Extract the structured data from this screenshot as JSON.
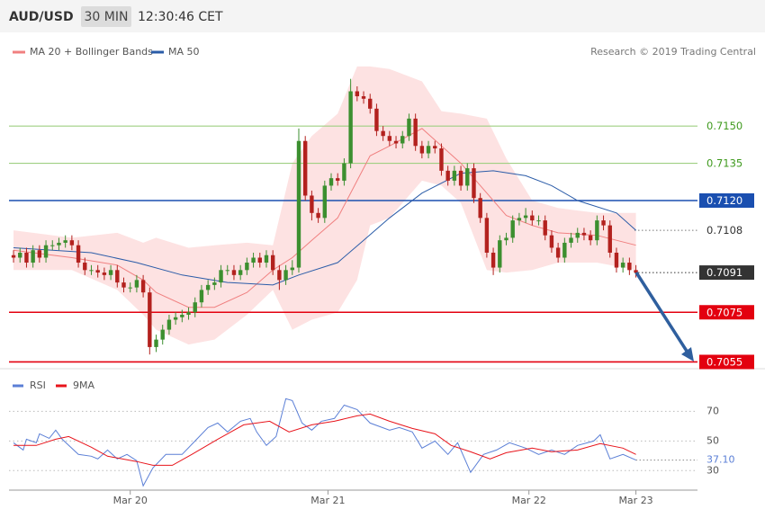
{
  "header": {
    "symbol": "AUD/USD",
    "interval": "30 MIN",
    "time": "12:30:46 CET"
  },
  "credit": "Research © 2019 Trading Central",
  "chart_data": [
    {
      "type": "candlestick",
      "open": [
        0.7098,
        0.7097,
        0.7099,
        0.7095,
        0.71,
        0.7097,
        0.7102,
        0.7102,
        0.7103,
        0.7104,
        0.7102,
        0.7095,
        0.7092,
        0.7092,
        0.7091,
        0.709,
        0.7092,
        0.7087,
        0.7085,
        0.7085,
        0.7088,
        0.7083,
        0.7061,
        0.7064,
        0.7068,
        0.7072,
        0.7073,
        0.7074,
        0.7075,
        0.7079,
        0.7084,
        0.7086,
        0.7087,
        0.7092,
        0.7092,
        0.709,
        0.7092,
        0.7095,
        0.7097,
        0.7095,
        0.7098,
        0.7092,
        0.7088,
        0.7092,
        0.7093,
        0.7144,
        0.7122,
        0.7115,
        0.7113,
        0.7126,
        0.7129,
        0.7128,
        0.7135,
        0.7164,
        0.7162,
        0.7161,
        0.7157,
        0.7148,
        0.7146,
        0.7144,
        0.7143,
        0.7146,
        0.7153,
        0.7142,
        0.7139,
        0.7142,
        0.7141,
        0.7132,
        0.7128,
        0.7132,
        0.7126,
        0.7133,
        0.7121,
        0.7113,
        0.7099,
        0.7093,
        0.7104,
        0.7105,
        0.7112,
        0.7113,
        0.7114,
        0.7112,
        0.7112,
        0.7106,
        0.7101,
        0.7097,
        0.7103,
        0.7105,
        0.7107,
        0.7106,
        0.7104,
        0.7112,
        0.711,
        0.7099,
        0.7093,
        0.7095,
        0.7092
      ],
      "high": [
        0.71,
        0.7101,
        0.7101,
        0.7102,
        0.7102,
        0.7104,
        0.7104,
        0.7105,
        0.7106,
        0.7106,
        0.7104,
        0.7097,
        0.7094,
        0.7094,
        0.7093,
        0.7094,
        0.7094,
        0.7089,
        0.7087,
        0.709,
        0.709,
        0.7085,
        0.7066,
        0.707,
        0.7074,
        0.7075,
        0.7076,
        0.7077,
        0.7081,
        0.7086,
        0.7088,
        0.7089,
        0.7094,
        0.7094,
        0.7094,
        0.7094,
        0.7097,
        0.7099,
        0.7099,
        0.71,
        0.71,
        0.7094,
        0.7094,
        0.7096,
        0.7149,
        0.7146,
        0.7124,
        0.7117,
        0.7128,
        0.7131,
        0.7131,
        0.7137,
        0.7169,
        0.7166,
        0.7164,
        0.7163,
        0.7159,
        0.715,
        0.7148,
        0.7146,
        0.7148,
        0.7155,
        0.7155,
        0.7144,
        0.7144,
        0.7144,
        0.7143,
        0.7134,
        0.7134,
        0.7134,
        0.7135,
        0.7135,
        0.7123,
        0.7115,
        0.7101,
        0.7106,
        0.7107,
        0.7114,
        0.7115,
        0.7117,
        0.7116,
        0.7114,
        0.7114,
        0.7108,
        0.7103,
        0.7105,
        0.7107,
        0.7109,
        0.7109,
        0.7108,
        0.7114,
        0.7114,
        0.7112,
        0.7101,
        0.7097,
        0.7097,
        0.7094
      ],
      "low": [
        0.7095,
        0.7095,
        0.7093,
        0.7093,
        0.7095,
        0.7095,
        0.71,
        0.71,
        0.7101,
        0.71,
        0.7093,
        0.709,
        0.709,
        0.7089,
        0.7088,
        0.7088,
        0.7085,
        0.7083,
        0.7083,
        0.7083,
        0.7081,
        0.7058,
        0.7059,
        0.7062,
        0.7066,
        0.707,
        0.7071,
        0.7072,
        0.7073,
        0.7077,
        0.7082,
        0.7084,
        0.7085,
        0.709,
        0.7088,
        0.7088,
        0.709,
        0.7093,
        0.7093,
        0.7093,
        0.709,
        0.7084,
        0.7086,
        0.709,
        0.7091,
        0.712,
        0.7112,
        0.7111,
        0.7111,
        0.7124,
        0.7126,
        0.7126,
        0.7133,
        0.716,
        0.7159,
        0.7155,
        0.7146,
        0.7144,
        0.7142,
        0.7141,
        0.7141,
        0.7144,
        0.714,
        0.7137,
        0.7137,
        0.7139,
        0.713,
        0.7126,
        0.7126,
        0.7124,
        0.7124,
        0.7119,
        0.7111,
        0.7097,
        0.709,
        0.7091,
        0.7102,
        0.7103,
        0.711,
        0.7111,
        0.711,
        0.711,
        0.7104,
        0.7099,
        0.7095,
        0.7095,
        0.7101,
        0.7103,
        0.7104,
        0.7102,
        0.7102,
        0.7108,
        0.7097,
        0.7091,
        0.7091,
        0.709,
        0.7089
      ],
      "close": [
        0.7097,
        0.7099,
        0.7095,
        0.71,
        0.7097,
        0.7102,
        0.7102,
        0.7103,
        0.7104,
        0.7102,
        0.7095,
        0.7092,
        0.7092,
        0.7091,
        0.709,
        0.7092,
        0.7087,
        0.7085,
        0.7085,
        0.7088,
        0.7083,
        0.7061,
        0.7064,
        0.7068,
        0.7072,
        0.7073,
        0.7074,
        0.7075,
        0.7079,
        0.7084,
        0.7086,
        0.7087,
        0.7092,
        0.7092,
        0.709,
        0.7092,
        0.7095,
        0.7097,
        0.7095,
        0.7098,
        0.7092,
        0.7088,
        0.7092,
        0.7093,
        0.7144,
        0.7122,
        0.7115,
        0.7113,
        0.7126,
        0.7129,
        0.7128,
        0.7135,
        0.7164,
        0.7162,
        0.7161,
        0.7157,
        0.7148,
        0.7146,
        0.7144,
        0.7143,
        0.7146,
        0.7153,
        0.7142,
        0.7139,
        0.7142,
        0.7141,
        0.7132,
        0.7128,
        0.7132,
        0.7126,
        0.7133,
        0.7121,
        0.7113,
        0.7099,
        0.7093,
        0.7104,
        0.7105,
        0.7112,
        0.7113,
        0.7114,
        0.7112,
        0.7112,
        0.7106,
        0.7101,
        0.7097,
        0.7103,
        0.7105,
        0.7107,
        0.7106,
        0.7104,
        0.7112,
        0.711,
        0.7099,
        0.7093,
        0.7095,
        0.7092,
        0.7091
      ],
      "up_color": "#3c8f2f",
      "down_color": "#b3211e",
      "xlim": [
        -0.7,
        105.5
      ],
      "ylim": [
        0.7053,
        0.7187
      ],
      "overlays": [
        {
          "name": "MA 20 + Bollinger Bands",
          "color": "#f08080",
          "band_color": "#fde2e2",
          "x": [
            0,
            9,
            16,
            20,
            22,
            27,
            31,
            36,
            40,
            43,
            46,
            50,
            53,
            55,
            58,
            63,
            66,
            69,
            73,
            76,
            80,
            84,
            90,
            96
          ],
          "values": [
            0.71,
            0.7097,
            0.7094,
            0.7088,
            0.7083,
            0.7077,
            0.7077,
            0.7083,
            0.7092,
            0.7097,
            0.7104,
            0.7113,
            0.7128,
            0.7138,
            0.7142,
            0.7149,
            0.7142,
            0.7135,
            0.7123,
            0.7114,
            0.711,
            0.7107,
            0.7106,
            0.7102
          ],
          "upper": [
            0.7108,
            0.7105,
            0.7107,
            0.7103,
            0.7105,
            0.7101,
            0.7102,
            0.7103,
            0.7102,
            0.7135,
            0.7146,
            0.7155,
            0.7174,
            0.7174,
            0.7173,
            0.7168,
            0.7156,
            0.7155,
            0.7153,
            0.7137,
            0.712,
            0.7117,
            0.7115,
            0.7115
          ],
          "lower": [
            0.7092,
            0.7092,
            0.7084,
            0.7074,
            0.7068,
            0.7062,
            0.7064,
            0.7074,
            0.7084,
            0.7068,
            0.7072,
            0.7075,
            0.7088,
            0.711,
            0.7113,
            0.7128,
            0.7126,
            0.7119,
            0.7092,
            0.7091,
            0.7092,
            0.7095,
            0.7095,
            0.7092
          ]
        },
        {
          "name": "MA 50",
          "color": "#2b5ca8",
          "x": [
            0,
            12,
            19,
            26,
            33,
            40,
            44,
            50,
            54,
            58,
            63,
            69,
            74,
            79,
            83,
            87,
            93,
            96
          ],
          "values": [
            0.7101,
            0.7099,
            0.7095,
            0.709,
            0.7087,
            0.7086,
            0.709,
            0.7095,
            0.7104,
            0.7113,
            0.7123,
            0.7131,
            0.7132,
            0.713,
            0.7126,
            0.712,
            0.7115,
            0.7108
          ]
        }
      ],
      "levels": [
        {
          "value": 0.715,
          "label": "0.7150",
          "color": "#9fcf82",
          "text_color": "#3f9a1e",
          "dash": false,
          "filled": false
        },
        {
          "value": 0.7135,
          "label": "0.7135",
          "color": "#9fcf82",
          "text_color": "#3f9a1e",
          "dash": false,
          "filled": false
        },
        {
          "value": 0.712,
          "label": "0.7120",
          "color": "#1a4fb0",
          "text_color": "#ffffff",
          "dash": false,
          "filled": true
        },
        {
          "value": 0.7108,
          "label": "0.7108",
          "color": "#777777",
          "text_color": "#333333",
          "dash": true,
          "filled": false
        },
        {
          "value": 0.7091,
          "label": "0.7091",
          "color": "#333333",
          "text_color": "#ffffff",
          "dash": true,
          "filled": true
        },
        {
          "value": 0.7075,
          "label": "0.7075",
          "color": "#e3000f",
          "text_color": "#ffffff",
          "dash": false,
          "filled": true
        },
        {
          "value": 0.7055,
          "label": "0.7055",
          "color": "#e3000f",
          "text_color": "#ffffff",
          "dash": false,
          "filled": true
        }
      ]
    },
    {
      "type": "line",
      "xlim": [
        -0.7,
        105.5
      ],
      "ylim": [
        15,
        100
      ],
      "yticks": [
        70,
        50,
        30
      ],
      "grid": true,
      "xticks": [
        {
          "value": 18,
          "label": "Mar 20"
        },
        {
          "value": 48.5,
          "label": "Mar 21"
        },
        {
          "value": 79.5,
          "label": "Mar 22"
        },
        {
          "value": 96,
          "label": "Mar 23"
        }
      ],
      "series": [
        {
          "name": "RSI",
          "color": "#5b7fd6",
          "last_label": "37.10",
          "x": [
            0,
            1.5,
            2,
            3.5,
            4,
            5.5,
            6.5,
            7.5,
            10,
            12,
            13,
            14.5,
            16,
            17.5,
            19,
            20,
            21.5,
            23.5,
            26,
            28,
            30,
            31.5,
            33,
            35,
            36.5,
            37.5,
            39,
            40.5,
            42,
            43,
            44.5,
            46,
            47.5,
            49.5,
            51,
            53,
            55,
            58,
            59.5,
            61.5,
            63,
            65,
            67,
            68.5,
            70.5,
            72.5,
            74.5,
            76.5,
            79,
            81,
            83,
            85,
            87,
            89.5,
            90.5,
            92,
            94,
            96
          ],
          "values": [
            48.8,
            43.9,
            51.2,
            48.8,
            54.8,
            51.8,
            57.3,
            51.2,
            40.9,
            39.7,
            37.9,
            43.9,
            37.9,
            40.9,
            36.7,
            19.7,
            31.8,
            40.9,
            40.9,
            50.0,
            59.1,
            62.1,
            56.1,
            63.3,
            65.2,
            56.1,
            47.0,
            53.0,
            78.5,
            77.3,
            62.1,
            57.3,
            63.3,
            65.2,
            74.2,
            71.2,
            62.1,
            57.3,
            59.1,
            56.1,
            45.2,
            50.0,
            40.9,
            48.8,
            28.8,
            40.9,
            43.9,
            48.8,
            45.2,
            40.9,
            43.9,
            40.9,
            47.0,
            50.0,
            54.2,
            37.9,
            40.9,
            37.1
          ]
        },
        {
          "name": "9MA",
          "color": "#e8141b",
          "x": [
            0,
            3.5,
            6.5,
            8.5,
            12,
            14.5,
            19,
            21.5,
            24.5,
            27.5,
            31.5,
            35.5,
            39.5,
            42.5,
            46,
            49.5,
            53,
            55,
            58,
            61.5,
            65,
            67.5,
            70.5,
            73.5,
            76,
            80,
            83,
            87,
            90.5,
            94,
            96
          ],
          "values": [
            47.0,
            47.0,
            51.2,
            53.0,
            45.8,
            39.7,
            36.1,
            33.6,
            33.6,
            40.9,
            51.2,
            60.9,
            63.3,
            56.1,
            60.9,
            63.3,
            67.0,
            68.2,
            63.3,
            58.5,
            54.8,
            47.0,
            42.7,
            37.9,
            42.1,
            45.2,
            42.7,
            43.9,
            48.2,
            45.2,
            40.9
          ]
        }
      ]
    }
  ]
}
